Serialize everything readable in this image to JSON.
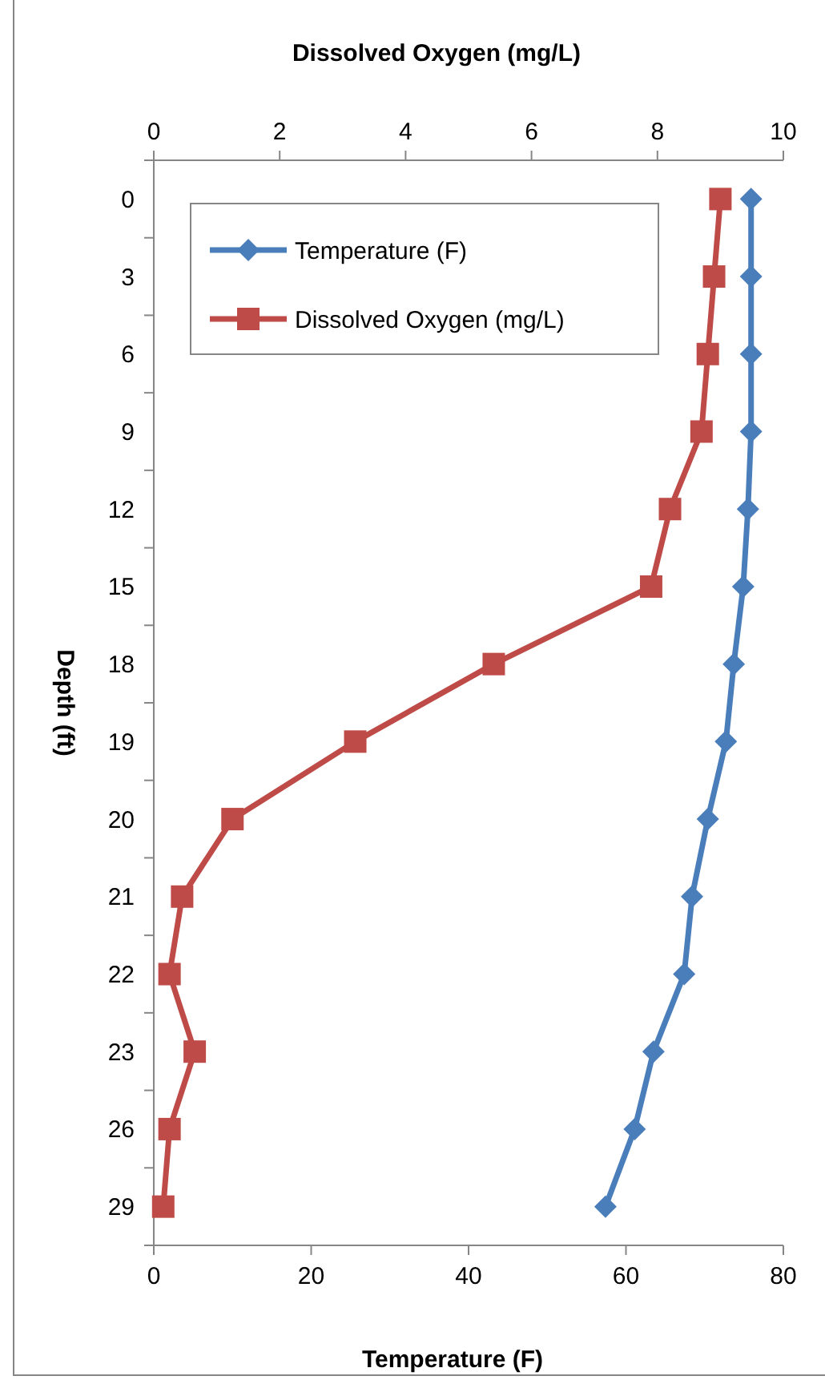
{
  "chart_data": {
    "type": "line",
    "orientation": "horizontal",
    "xlabel": "Temperature (F)",
    "x2label": "Dissolved Oxygen (mg/L)",
    "ylabel": "Depth (ft)",
    "categories": [
      "0",
      "3",
      "6",
      "9",
      "12",
      "15",
      "18",
      "19",
      "20",
      "21",
      "22",
      "23",
      "26",
      "29"
    ],
    "xlim": [
      0,
      80
    ],
    "xticks": [
      0,
      20,
      40,
      60,
      80
    ],
    "x2lim": [
      0,
      10
    ],
    "x2ticks": [
      0,
      2,
      4,
      6,
      8,
      10
    ],
    "grid": false,
    "legend": "top left",
    "series": [
      {
        "name": "Temperature (F)",
        "color": "#4a7ebb",
        "marker": "diamond",
        "values": [
          75.9,
          75.9,
          75.9,
          75.9,
          75.5,
          74.9,
          73.7,
          72.7,
          70.4,
          68.4,
          67.4,
          63.5,
          61.1,
          57.4
        ]
      },
      {
        "name": "Dissolved Oxygen (mg/L)",
        "color": "#be4b48",
        "marker": "square",
        "axis": "x2",
        "values": [
          9.0,
          8.9,
          8.8,
          8.7,
          8.2,
          7.9,
          5.4,
          3.2,
          1.25,
          0.45,
          0.25,
          0.65,
          0.25,
          0.15
        ]
      }
    ]
  }
}
